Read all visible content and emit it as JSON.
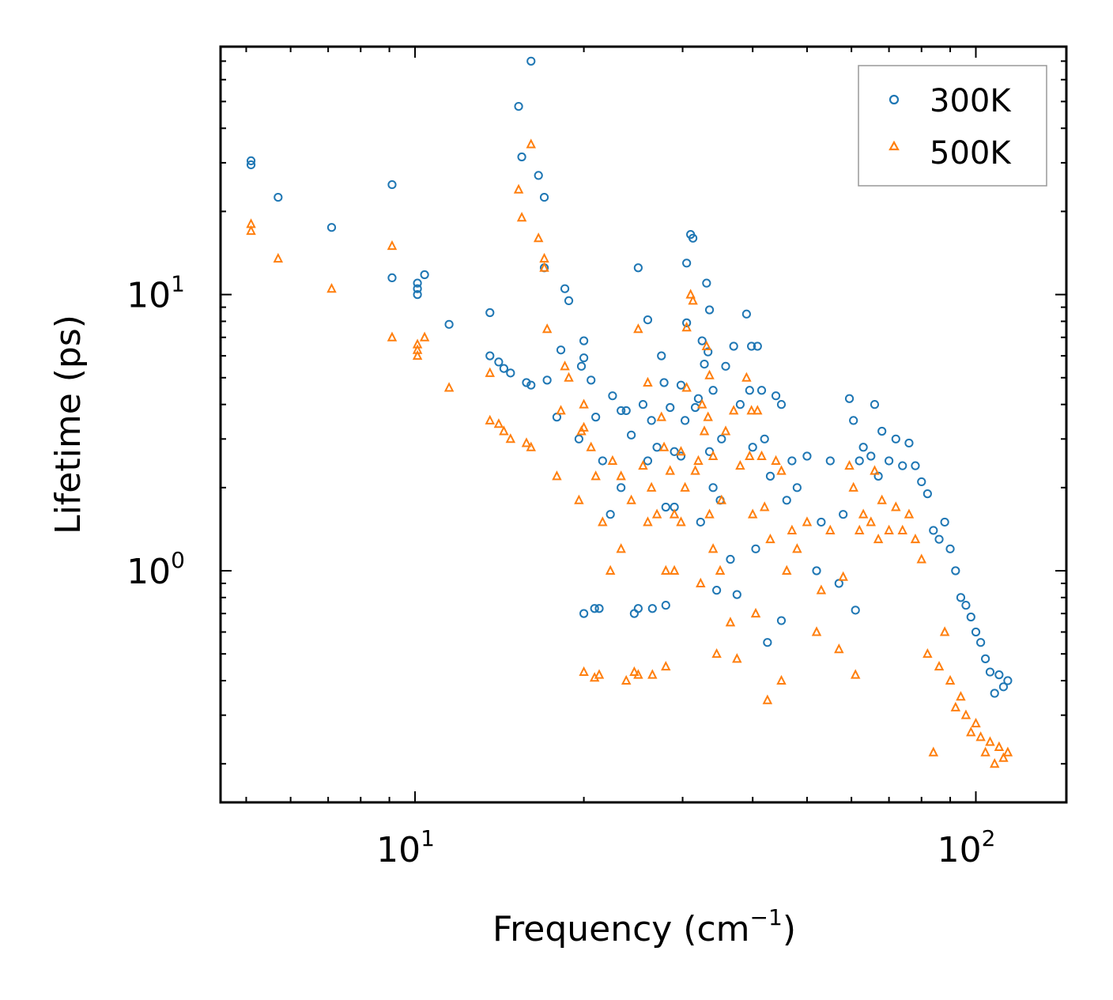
{
  "chart_data": {
    "type": "scatter",
    "title": "",
    "xlabel": "Frequency (cm",
    "xlabel_sup": "−1",
    "xlabel_end": ")",
    "ylabel": "Lifetime (ps)",
    "xscale": "log",
    "yscale": "log",
    "xlim": [
      4.5,
      145
    ],
    "ylim": [
      0.145,
      79
    ],
    "x_ticks": [
      {
        "base": "10",
        "exp": "1",
        "value": 10
      },
      {
        "base": "10",
        "exp": "2",
        "value": 100
      }
    ],
    "y_ticks": [
      {
        "base": "10",
        "exp": "0",
        "value": 1
      },
      {
        "base": "10",
        "exp": "1",
        "value": 10
      }
    ],
    "legend_position": "top-right",
    "series": [
      {
        "name": "300K",
        "marker": "circle",
        "color": "#1f77b4",
        "points": [
          [
            5.1,
            30.5
          ],
          [
            5.1,
            29.5
          ],
          [
            5.7,
            22.5
          ],
          [
            7.1,
            17.5
          ],
          [
            9.1,
            25.0
          ],
          [
            9.1,
            11.5
          ],
          [
            10.1,
            11.0
          ],
          [
            10.1,
            10.5
          ],
          [
            10.1,
            10.0
          ],
          [
            10.4,
            11.8
          ],
          [
            11.5,
            7.8
          ],
          [
            13.6,
            8.6
          ],
          [
            13.6,
            6.0
          ],
          [
            14.1,
            5.7
          ],
          [
            14.4,
            5.4
          ],
          [
            14.8,
            5.2
          ],
          [
            15.3,
            48.0
          ],
          [
            15.5,
            31.5
          ],
          [
            15.8,
            4.8
          ],
          [
            16.1,
            4.7
          ],
          [
            16.1,
            70.0
          ],
          [
            16.6,
            27.0
          ],
          [
            17.0,
            22.5
          ],
          [
            17.0,
            12.5
          ],
          [
            17.2,
            4.9
          ],
          [
            17.9,
            3.6
          ],
          [
            18.2,
            6.3
          ],
          [
            18.5,
            10.5
          ],
          [
            18.8,
            9.5
          ],
          [
            19.6,
            3.0
          ],
          [
            19.8,
            5.5
          ],
          [
            20.0,
            6.8
          ],
          [
            20.0,
            5.9
          ],
          [
            20.6,
            4.9
          ],
          [
            20.0,
            0.7
          ],
          [
            20.9,
            0.73
          ],
          [
            21.3,
            0.73
          ],
          [
            21.6,
            2.5
          ],
          [
            21.0,
            3.6
          ],
          [
            22.3,
            1.6
          ],
          [
            22.5,
            4.3
          ],
          [
            23.3,
            2.0
          ],
          [
            23.3,
            3.8
          ],
          [
            23.8,
            3.8
          ],
          [
            24.3,
            3.1
          ],
          [
            24.6,
            0.7
          ],
          [
            25.0,
            0.73
          ],
          [
            25.0,
            12.5
          ],
          [
            25.5,
            4.0
          ],
          [
            26.0,
            2.5
          ],
          [
            26.0,
            8.1
          ],
          [
            26.5,
            0.73
          ],
          [
            26.4,
            3.5
          ],
          [
            27.0,
            2.8
          ],
          [
            27.5,
            6.0
          ],
          [
            27.8,
            4.8
          ],
          [
            28.0,
            1.7
          ],
          [
            28.0,
            0.75
          ],
          [
            28.5,
            3.9
          ],
          [
            29.0,
            2.7
          ],
          [
            29.0,
            1.7
          ],
          [
            29.8,
            2.6
          ],
          [
            29.8,
            4.7
          ],
          [
            30.3,
            3.5
          ],
          [
            30.5,
            7.9
          ],
          [
            30.5,
            13.0
          ],
          [
            31.0,
            16.5
          ],
          [
            31.3,
            16.0
          ],
          [
            31.6,
            3.9
          ],
          [
            32.0,
            4.2
          ],
          [
            32.3,
            1.5
          ],
          [
            32.5,
            6.8
          ],
          [
            32.8,
            5.6
          ],
          [
            33.1,
            11.0
          ],
          [
            33.3,
            6.2
          ],
          [
            33.5,
            2.7
          ],
          [
            33.5,
            8.8
          ],
          [
            34.0,
            4.5
          ],
          [
            34.0,
            2.0
          ],
          [
            34.5,
            0.85
          ],
          [
            35.0,
            1.8
          ],
          [
            35.2,
            3.0
          ],
          [
            35.8,
            5.5
          ],
          [
            36.5,
            1.1
          ],
          [
            37.0,
            6.5
          ],
          [
            37.5,
            0.82
          ],
          [
            38.0,
            4.0
          ],
          [
            39.0,
            8.5
          ],
          [
            39.5,
            4.5
          ],
          [
            39.8,
            6.5
          ],
          [
            40.5,
            1.2
          ],
          [
            40.0,
            2.8
          ],
          [
            40.8,
            6.5
          ],
          [
            41.5,
            4.5
          ],
          [
            42.0,
            3.0
          ],
          [
            42.5,
            0.55
          ],
          [
            43.0,
            2.2
          ],
          [
            44.0,
            4.3
          ],
          [
            45.0,
            0.66
          ],
          [
            45.0,
            4.0
          ],
          [
            46.0,
            1.8
          ],
          [
            47.0,
            2.5
          ],
          [
            48.0,
            2.0
          ],
          [
            50.0,
            2.6
          ],
          [
            52.0,
            1.0
          ],
          [
            53.0,
            1.5
          ],
          [
            55.0,
            2.5
          ],
          [
            57.0,
            0.9
          ],
          [
            58.0,
            1.6
          ],
          [
            59.5,
            4.2
          ],
          [
            60.5,
            3.5
          ],
          [
            61.0,
            0.72
          ],
          [
            62.0,
            2.5
          ],
          [
            63.0,
            2.8
          ],
          [
            65.0,
            2.6
          ],
          [
            66.0,
            4.0
          ],
          [
            67.0,
            2.2
          ],
          [
            68.0,
            3.2
          ],
          [
            70.0,
            2.5
          ],
          [
            72.0,
            3.0
          ],
          [
            74.0,
            2.4
          ],
          [
            76.0,
            2.9
          ],
          [
            78.0,
            2.4
          ],
          [
            80.0,
            2.1
          ],
          [
            82.0,
            1.9
          ],
          [
            84.0,
            1.4
          ],
          [
            86.0,
            1.3
          ],
          [
            88.0,
            1.5
          ],
          [
            90.0,
            1.2
          ],
          [
            92.0,
            1.0
          ],
          [
            94.0,
            0.8
          ],
          [
            96.0,
            0.75
          ],
          [
            98.0,
            0.68
          ],
          [
            100.0,
            0.6
          ],
          [
            102.0,
            0.55
          ],
          [
            104.0,
            0.48
          ],
          [
            106.0,
            0.43
          ],
          [
            108.0,
            0.36
          ],
          [
            110.0,
            0.42
          ],
          [
            112.0,
            0.38
          ],
          [
            114.0,
            0.4
          ]
        ]
      },
      {
        "name": "500K",
        "marker": "triangle",
        "color": "#ff7f0e",
        "points": [
          [
            5.1,
            18.0
          ],
          [
            5.1,
            17.0
          ],
          [
            5.7,
            13.5
          ],
          [
            7.1,
            10.5
          ],
          [
            9.1,
            15.0
          ],
          [
            9.1,
            7.0
          ],
          [
            10.1,
            6.6
          ],
          [
            10.1,
            6.3
          ],
          [
            10.1,
            6.0
          ],
          [
            10.4,
            7.0
          ],
          [
            11.5,
            4.6
          ],
          [
            13.6,
            5.2
          ],
          [
            13.6,
            3.5
          ],
          [
            14.1,
            3.4
          ],
          [
            14.4,
            3.2
          ],
          [
            14.8,
            3.0
          ],
          [
            15.3,
            24.0
          ],
          [
            15.5,
            19.0
          ],
          [
            15.8,
            2.9
          ],
          [
            16.1,
            2.8
          ],
          [
            16.1,
            35.0
          ],
          [
            16.6,
            16.0
          ],
          [
            17.0,
            13.5
          ],
          [
            17.0,
            12.5
          ],
          [
            17.2,
            7.5
          ],
          [
            17.9,
            2.2
          ],
          [
            18.2,
            3.8
          ],
          [
            18.5,
            5.5
          ],
          [
            18.8,
            5.0
          ],
          [
            19.6,
            1.8
          ],
          [
            19.8,
            3.2
          ],
          [
            20.0,
            4.0
          ],
          [
            20.0,
            3.3
          ],
          [
            20.6,
            2.8
          ],
          [
            20.0,
            0.43
          ],
          [
            20.9,
            0.41
          ],
          [
            21.3,
            0.42
          ],
          [
            21.6,
            1.5
          ],
          [
            21.0,
            2.2
          ],
          [
            22.3,
            1.0
          ],
          [
            22.5,
            2.5
          ],
          [
            23.3,
            1.2
          ],
          [
            23.3,
            2.2
          ],
          [
            23.8,
            0.4
          ],
          [
            24.3,
            1.8
          ],
          [
            24.6,
            0.43
          ],
          [
            25.0,
            0.42
          ],
          [
            25.0,
            7.5
          ],
          [
            25.5,
            2.4
          ],
          [
            26.0,
            1.5
          ],
          [
            26.0,
            4.8
          ],
          [
            26.5,
            0.42
          ],
          [
            26.4,
            2.0
          ],
          [
            27.0,
            1.6
          ],
          [
            27.5,
            3.6
          ],
          [
            27.8,
            2.8
          ],
          [
            28.0,
            1.0
          ],
          [
            28.0,
            0.45
          ],
          [
            28.5,
            2.3
          ],
          [
            29.0,
            1.6
          ],
          [
            29.0,
            1.0
          ],
          [
            29.8,
            1.5
          ],
          [
            29.8,
            2.7
          ],
          [
            30.3,
            2.0
          ],
          [
            30.5,
            4.6
          ],
          [
            30.5,
            7.6
          ],
          [
            31.0,
            10.0
          ],
          [
            31.3,
            9.5
          ],
          [
            31.6,
            2.3
          ],
          [
            32.0,
            2.5
          ],
          [
            32.3,
            0.9
          ],
          [
            32.5,
            4.0
          ],
          [
            32.8,
            3.2
          ],
          [
            33.1,
            6.5
          ],
          [
            33.3,
            3.6
          ],
          [
            33.5,
            1.6
          ],
          [
            33.5,
            5.1
          ],
          [
            34.0,
            2.6
          ],
          [
            34.0,
            1.2
          ],
          [
            34.5,
            0.5
          ],
          [
            35.0,
            1.0
          ],
          [
            35.2,
            1.8
          ],
          [
            35.8,
            3.2
          ],
          [
            36.5,
            0.65
          ],
          [
            37.0,
            3.8
          ],
          [
            37.5,
            0.48
          ],
          [
            38.0,
            2.4
          ],
          [
            39.0,
            5.0
          ],
          [
            39.5,
            2.6
          ],
          [
            39.8,
            3.8
          ],
          [
            40.5,
            0.7
          ],
          [
            40.0,
            1.6
          ],
          [
            40.8,
            3.8
          ],
          [
            41.5,
            2.6
          ],
          [
            42.0,
            1.7
          ],
          [
            42.5,
            0.34
          ],
          [
            43.0,
            1.3
          ],
          [
            44.0,
            2.5
          ],
          [
            45.0,
            0.4
          ],
          [
            45.0,
            2.3
          ],
          [
            46.0,
            1.0
          ],
          [
            47.0,
            1.4
          ],
          [
            48.0,
            1.2
          ],
          [
            50.0,
            1.5
          ],
          [
            52.0,
            0.6
          ],
          [
            53.0,
            0.85
          ],
          [
            55.0,
            1.4
          ],
          [
            57.0,
            0.52
          ],
          [
            58.0,
            0.95
          ],
          [
            59.5,
            2.4
          ],
          [
            60.5,
            2.0
          ],
          [
            61.0,
            0.42
          ],
          [
            62.0,
            1.4
          ],
          [
            63.0,
            1.6
          ],
          [
            65.0,
            1.5
          ],
          [
            66.0,
            2.3
          ],
          [
            67.0,
            1.3
          ],
          [
            68.0,
            1.8
          ],
          [
            70.0,
            1.4
          ],
          [
            72.0,
            1.7
          ],
          [
            74.0,
            1.4
          ],
          [
            76.0,
            1.6
          ],
          [
            78.0,
            1.3
          ],
          [
            80.0,
            1.1
          ],
          [
            82.0,
            0.5
          ],
          [
            84.0,
            0.22
          ],
          [
            86.0,
            0.45
          ],
          [
            88.0,
            0.6
          ],
          [
            90.0,
            0.4
          ],
          [
            92.0,
            0.32
          ],
          [
            94.0,
            0.35
          ],
          [
            96.0,
            0.3
          ],
          [
            98.0,
            0.26
          ],
          [
            100.0,
            0.28
          ],
          [
            102.0,
            0.25
          ],
          [
            104.0,
            0.22
          ],
          [
            106.0,
            0.24
          ],
          [
            108.0,
            0.2
          ],
          [
            110.0,
            0.23
          ],
          [
            112.0,
            0.21
          ],
          [
            114.0,
            0.22
          ]
        ]
      }
    ]
  }
}
